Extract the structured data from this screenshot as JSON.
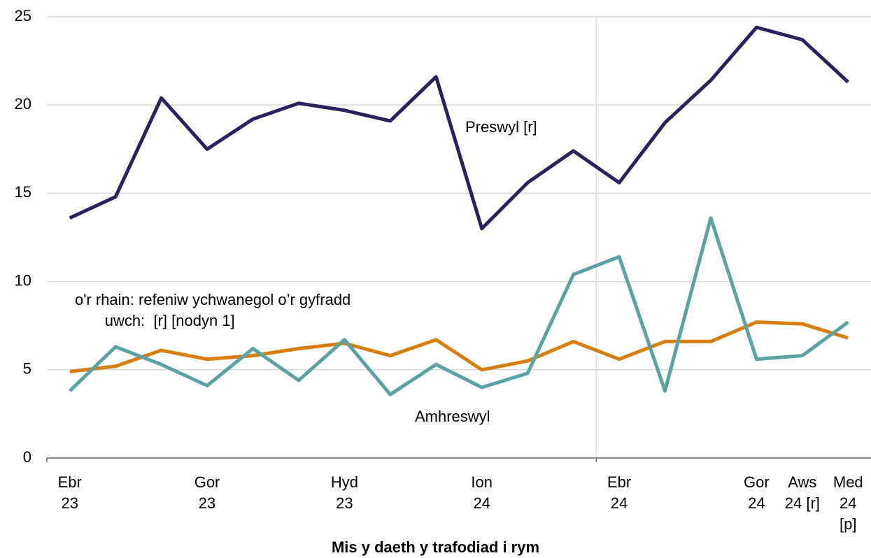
{
  "chart_data": {
    "type": "line",
    "x_label": "Mis y daeth y trafodiad i rym",
    "categories": [
      "Ebr\n23",
      null,
      null,
      "Gor\n23",
      null,
      null,
      "Hyd\n23",
      null,
      null,
      "Ion\n24",
      null,
      null,
      "Ebr\n24",
      null,
      null,
      "Gor\n24",
      "Aws\n24 [r]",
      "Med\n24\n[p]"
    ],
    "series": [
      {
        "name": "Preswyl [r]",
        "color": "#27235f",
        "values": [
          13.6,
          14.8,
          20.4,
          17.5,
          19.2,
          20.1,
          19.7,
          19.1,
          21.6,
          13.0,
          15.6,
          17.4,
          15.6,
          19.0,
          21.4,
          24.4,
          23.7,
          21.3
        ]
      },
      {
        "name": "o'r rhain: refeniw ychwanegol o’r gyfradd\n       uwch:  [r] [nodyn 1]",
        "color": "#d67f0e",
        "values": [
          4.9,
          5.2,
          6.1,
          5.6,
          5.8,
          6.2,
          6.5,
          5.8,
          6.7,
          5.0,
          5.5,
          6.6,
          5.6,
          6.6,
          6.6,
          7.7,
          7.6,
          6.8
        ]
      },
      {
        "name": "Amhreswyl",
        "color": "#5ba3a3",
        "values": [
          3.8,
          6.3,
          5.3,
          4.1,
          6.2,
          4.4,
          6.7,
          3.6,
          5.3,
          4.0,
          4.8,
          10.4,
          11.4,
          3.8,
          13.6,
          5.6,
          5.8,
          7.7
        ]
      }
    ],
    "ylim": [
      0,
      25
    ],
    "yticks": [
      0,
      5,
      10,
      15,
      20,
      25
    ],
    "grid": true
  }
}
